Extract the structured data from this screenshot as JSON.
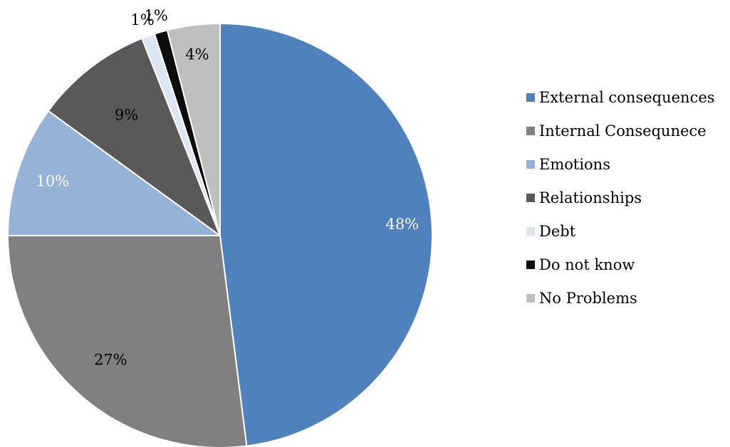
{
  "chart_data": {
    "type": "pie",
    "legend_position": "right",
    "slices": [
      {
        "name": "External consequences",
        "value": 48,
        "label": "48%",
        "color": "#4F81BD",
        "label_color": "#FFFFFF"
      },
      {
        "name": "Internal Consequnece",
        "value": 27,
        "label": "27%",
        "color": "#808080",
        "label_color": "#000000"
      },
      {
        "name": "Emotions",
        "value": 10,
        "label": "10%",
        "color": "#95B3D7",
        "label_color": "#FFFFFF"
      },
      {
        "name": "Relationships",
        "value": 9,
        "label": "9%",
        "color": "#595959",
        "label_color": "#000000"
      },
      {
        "name": "Debt",
        "value": 1,
        "label": "1%",
        "color": "#DCE6F2",
        "label_color": "#000000"
      },
      {
        "name": "Do not know",
        "value": 1,
        "label": "1%",
        "color": "#0D0D0D",
        "label_color": "#000000"
      },
      {
        "name": "No Problems",
        "value": 4,
        "label": "4%",
        "color": "#BFBFBF",
        "label_color": "#000000"
      }
    ]
  }
}
